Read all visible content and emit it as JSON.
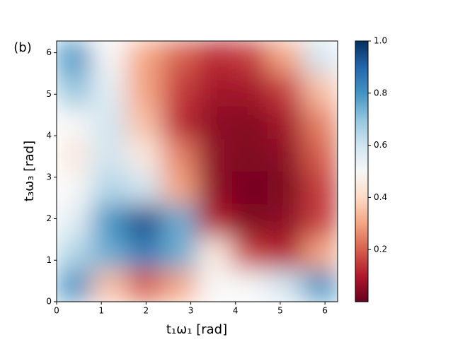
{
  "chart_data": {
    "type": "heatmap",
    "title": "(b)",
    "xlabel": "t₁ω₁ [rad]",
    "ylabel": "t₃ω₃ [rad]",
    "xbins": [
      0,
      0.785,
      1.571,
      2.356,
      3.142,
      3.927,
      4.712,
      5.498,
      6.283
    ],
    "ybins": [
      0,
      0.785,
      1.571,
      2.356,
      3.142,
      3.927,
      4.712,
      5.498,
      6.283
    ],
    "values": [
      [
        0.8,
        0.35,
        0.2,
        0.3,
        0.5,
        0.5,
        0.6,
        0.8
      ],
      [
        0.65,
        0.75,
        0.85,
        0.75,
        0.45,
        0.15,
        0.1,
        0.3
      ],
      [
        0.55,
        0.8,
        0.95,
        0.75,
        0.1,
        0.03,
        0.05,
        0.15
      ],
      [
        0.5,
        0.65,
        0.6,
        0.3,
        0.05,
        0.02,
        0.03,
        0.15
      ],
      [
        0.45,
        0.6,
        0.45,
        0.25,
        0.05,
        0.03,
        0.05,
        0.2
      ],
      [
        0.5,
        0.6,
        0.35,
        0.12,
        0.05,
        0.04,
        0.08,
        0.25
      ],
      [
        0.7,
        0.55,
        0.3,
        0.15,
        0.08,
        0.08,
        0.15,
        0.35
      ],
      [
        0.8,
        0.5,
        0.3,
        0.2,
        0.12,
        0.15,
        0.3,
        0.6
      ]
    ],
    "xlim": [
      0,
      6.283
    ],
    "ylim": [
      0,
      6.283
    ],
    "xticks": [
      0,
      1,
      2,
      3,
      4,
      5,
      6
    ],
    "yticks": [
      0,
      1,
      2,
      3,
      4,
      5,
      6
    ],
    "clim": [
      0,
      1
    ],
    "cticks": [
      0.2,
      0.4,
      0.6,
      0.8,
      1.0
    ],
    "colormap": [
      "#67001f",
      "#b2182b",
      "#d6604d",
      "#f4a582",
      "#fddbc7",
      "#f7f7f7",
      "#d1e5f0",
      "#92c5de",
      "#4393c3",
      "#2166ac",
      "#053061"
    ]
  }
}
